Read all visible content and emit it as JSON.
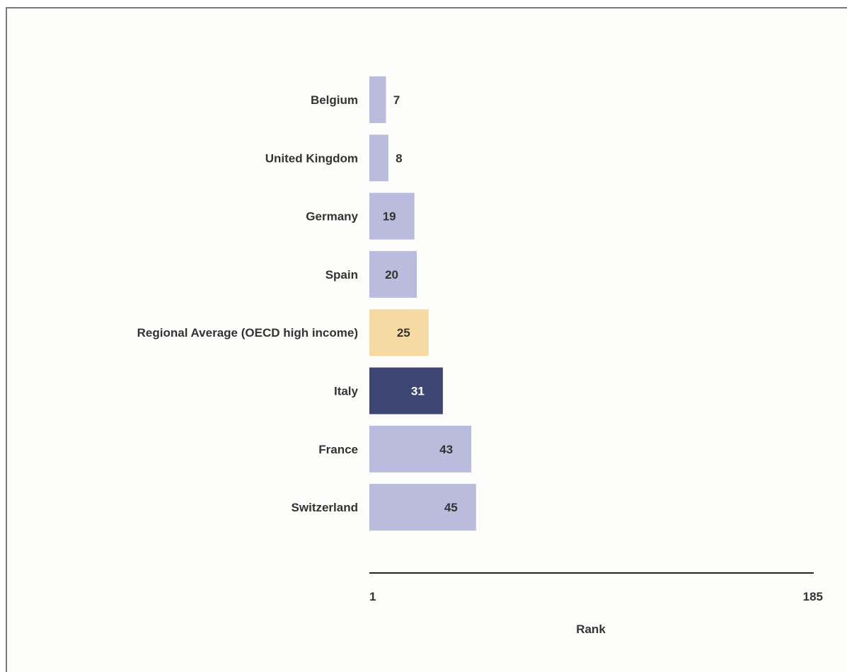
{
  "chart_data": {
    "type": "bar",
    "orientation": "horizontal",
    "categories": [
      "Belgium",
      "United Kingdom",
      "Germany",
      "Spain",
      "Regional Average (OECD high income)",
      "Italy",
      "France",
      "Switzerland"
    ],
    "values": [
      7,
      8,
      19,
      20,
      25,
      31,
      43,
      45
    ],
    "bar_colors": [
      "#b9bcdd",
      "#b9bcdd",
      "#b9bcdd",
      "#b9bcdd",
      "#f5dba3",
      "#3d4673",
      "#b9bcdd",
      "#b9bcdd"
    ],
    "value_label_colors": [
      "#333333",
      "#333333",
      "#333333",
      "#333333",
      "#333333",
      "#ffffff",
      "#333333",
      "#333333"
    ],
    "xlim": [
      1,
      185
    ],
    "x_ticks": [
      "1",
      "185"
    ],
    "xlabel": "Rank",
    "grid": false,
    "legend": "none"
  }
}
